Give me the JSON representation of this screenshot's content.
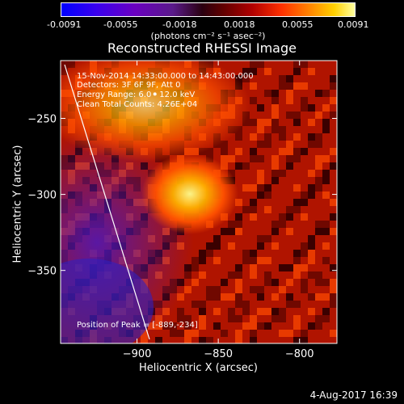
{
  "header": {
    "units": "(photons cm⁻² s⁻¹ asec⁻²)"
  },
  "colorbar": {
    "ticks": [
      "-0.0091",
      "-0.0055",
      "-0.0018",
      "0.0018",
      "0.0055",
      "0.0091"
    ],
    "range": [
      -0.0091,
      0.0091
    ]
  },
  "chart_data": {
    "type": "heatmap",
    "title": "Reconstructed RHESSI Image",
    "xlabel": "Heliocentric X (arcsec)",
    "ylabel": "Heliocentric Y (arcsec)",
    "xlim": [
      -947,
      -777
    ],
    "ylim": [
      -398,
      -212
    ],
    "x_ticks": [
      {
        "value": -900,
        "label": "−900"
      },
      {
        "value": -850,
        "label": "−850"
      },
      {
        "value": -800,
        "label": "−800"
      }
    ],
    "y_ticks": [
      {
        "value": -250,
        "label": "−250"
      },
      {
        "value": -300,
        "label": "−300"
      },
      {
        "value": -350,
        "label": "−350"
      }
    ],
    "peak": {
      "x": -889,
      "y": -234
    },
    "annotations": [
      "15-Nov-2014 14:33:00.000 to 14:43:00.000",
      "Detectors: 3F 6F 9F, Att 0",
      "Energy Range: 6.0 - 12.0 keV",
      "Clean      Total Counts: 4.26E+04"
    ],
    "peak_label": "Position of Peak = [-889,-234]"
  },
  "footer": {
    "date": "4-Aug-2017 16:39"
  }
}
